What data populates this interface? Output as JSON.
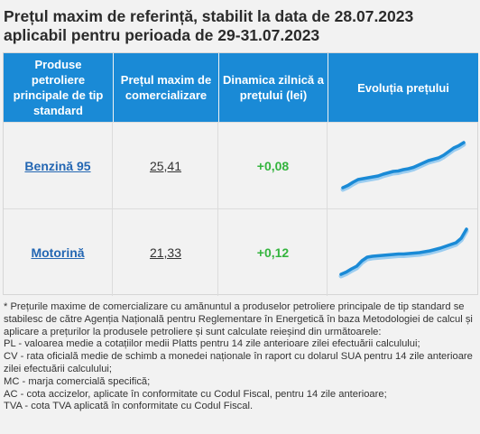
{
  "header": {
    "title_line1": "Prețul maxim de referință, stabilit la data de 28.07.2023",
    "title_line2": "aplicabil pentru perioada de 29-31.07.2023"
  },
  "table": {
    "columns": [
      "Produse petroliere principale de tip standard",
      "Prețul maxim de comercializare",
      "Dinamica zilnică a prețului (lei)",
      "Evoluția prețului"
    ],
    "rows": [
      {
        "product": "Benzină 95",
        "price": "25,41",
        "change": "+0,08",
        "trend": [
          0.0,
          0.05,
          0.12,
          0.18,
          0.2,
          0.22,
          0.24,
          0.26,
          0.3,
          0.33,
          0.36,
          0.37,
          0.4,
          0.42,
          0.45,
          0.5,
          0.55,
          0.6,
          0.63,
          0.66,
          0.72,
          0.8,
          0.88,
          0.93,
          1.0
        ]
      },
      {
        "product": "Motorină",
        "price": "21,33",
        "change": "+0,12",
        "trend": [
          0.0,
          0.05,
          0.12,
          0.18,
          0.3,
          0.38,
          0.4,
          0.41,
          0.42,
          0.43,
          0.44,
          0.45,
          0.45,
          0.46,
          0.47,
          0.48,
          0.5,
          0.52,
          0.55,
          0.58,
          0.62,
          0.66,
          0.7,
          0.8,
          1.0
        ]
      }
    ]
  },
  "trend_color": "#1a8ad6",
  "notes": {
    "intro": "* Prețurile maxime de comercializare cu amănuntul a produselor petroliere principale de tip standard se stabilesc de către Agenția Națională pentru Reglementare în Energetică în baza Metodologiei de calcul și aplicare a prețurilor la produsele petroliere și sunt calculate reieșind din următoarele:",
    "pl": "PL - valoarea medie a cotațiilor medii Platts pentru 14 zile anterioare zilei efectuării calculului;",
    "cv": "CV - rata oficială medie de schimb a monedei naționale în raport cu dolarul SUA pentru 14 zile anterioare zilei efectuării calculului;",
    "mc": "MC - marja comercială specifică;",
    "ac": "AC - cota accizelor, aplicate în conformitate cu Codul Fiscal, pentru 14 zile anterioare;",
    "tva": "TVA - cota TVA aplicată în conformitate cu Codul Fiscal."
  }
}
